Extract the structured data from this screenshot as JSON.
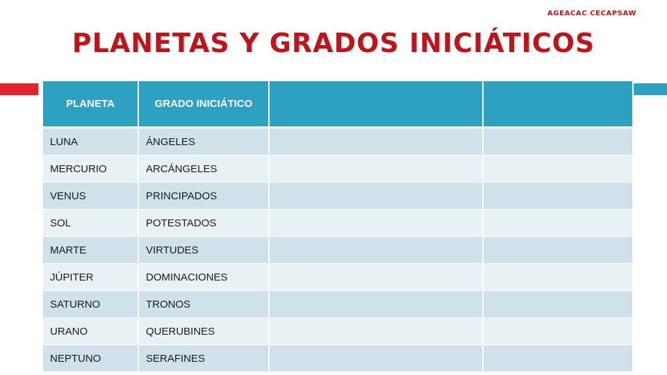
{
  "header": {
    "org": "AGEACAC CECAPSAW",
    "title": "PLANETAS Y GRADOS INICIÁTICOS"
  },
  "table": {
    "columns": [
      "PLANETA",
      "GRADO INICIÁTICO",
      "",
      ""
    ],
    "rows": [
      [
        "LUNA",
        "ÁNGELES",
        "",
        ""
      ],
      [
        "MERCURIO",
        "ARCÁNGELES",
        "",
        ""
      ],
      [
        "VENUS",
        "PRINCIPADOS",
        "",
        ""
      ],
      [
        "SOL",
        "POTESTADOS",
        "",
        ""
      ],
      [
        "MARTE",
        "VIRTUDES",
        "",
        ""
      ],
      [
        "JÚPITER",
        "DOMINACIONES",
        "",
        ""
      ],
      [
        "SATURNO",
        "TRONOS",
        "",
        ""
      ],
      [
        "URANO",
        "QUERUBINES",
        "",
        ""
      ],
      [
        "NEPTUNO",
        "SERAFINES",
        "",
        ""
      ]
    ]
  },
  "colors": {
    "title": "#c0141a",
    "accent_left": "#e3242b",
    "accent_right": "#2ea1c3",
    "header_fill": "#2ea1c3",
    "row_odd": "#cfe2e9",
    "row_even": "#e8f1f4"
  }
}
